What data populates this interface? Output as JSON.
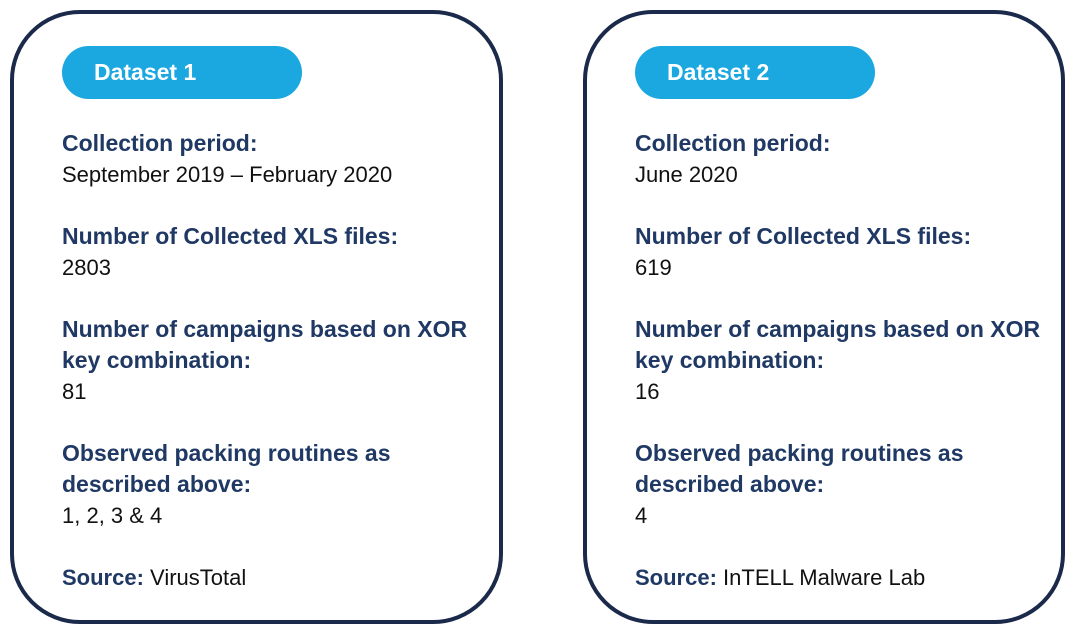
{
  "cards": [
    {
      "title": "Dataset 1",
      "items": [
        {
          "label": "Collection period:",
          "value": "September 2019 – February 2020"
        },
        {
          "label": "Number of Collected XLS files:",
          "value": "2803"
        },
        {
          "label": "Number of campaigns based on XOR key combination:",
          "value": "81"
        },
        {
          "label": "Observed packing routines as described above:",
          "value": "1, 2, 3 & 4"
        }
      ],
      "source": {
        "label": "Source:",
        "value": "VirusTotal"
      }
    },
    {
      "title": "Dataset 2",
      "items": [
        {
          "label": "Collection period:",
          "value": "June 2020"
        },
        {
          "label": "Number of Collected XLS files:",
          "value": "619"
        },
        {
          "label": "Number of campaigns based on XOR key combination:",
          "value": "16"
        },
        {
          "label": "Observed packing routines as described above:",
          "value": "4"
        }
      ],
      "source": {
        "label": "Source:",
        "value": "InTELL Malware Lab"
      }
    }
  ]
}
